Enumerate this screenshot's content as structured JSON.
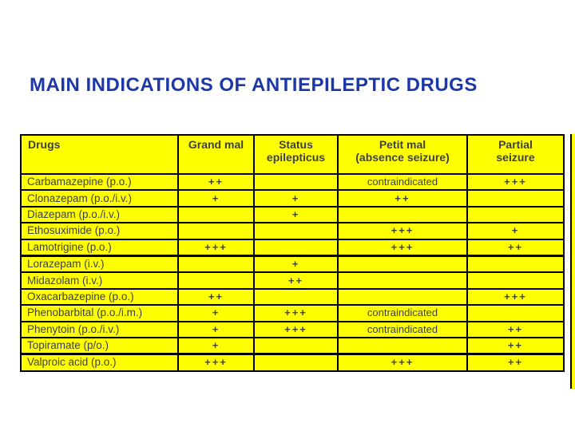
{
  "title": "MAIN INDICATIONS OF ANTIEPILEPTIC DRUGS",
  "colors": {
    "title_text": "#1c38a8",
    "table_background": "#ffff00",
    "table_text": "#3c3f48",
    "table_border": "#000000",
    "page_background": "#ffffff"
  },
  "table": {
    "columns": [
      "Drugs",
      "Grand mal",
      "Status\nepilepticus",
      "Petit mal\n(absence seizure)",
      "Partial\nseizure"
    ],
    "group_end_rows": [
      4,
      10
    ],
    "rows": [
      {
        "drug": "Carbamazepine (p.o.)",
        "grand_mal": "++",
        "status_epilepticus": "",
        "petit_mal": "contraindicated",
        "partial_seizure": "+++"
      },
      {
        "drug": "Clonazepam (p.o./i.v.)",
        "grand_mal": "+",
        "status_epilepticus": "+",
        "petit_mal": "++",
        "partial_seizure": ""
      },
      {
        "drug": "Diazepam (p.o./i.v.)",
        "grand_mal": "",
        "status_epilepticus": "+",
        "petit_mal": "",
        "partial_seizure": ""
      },
      {
        "drug": "Ethosuximide (p.o.)",
        "grand_mal": "",
        "status_epilepticus": "",
        "petit_mal": "+++",
        "partial_seizure": "+"
      },
      {
        "drug": "Lamotrigine (p.o.)",
        "grand_mal": "+++",
        "status_epilepticus": "",
        "petit_mal": "+++",
        "partial_seizure": "++"
      },
      {
        "drug": "Lorazepam (i.v.)",
        "grand_mal": "",
        "status_epilepticus": "+",
        "petit_mal": "",
        "partial_seizure": ""
      },
      {
        "drug": "Midazolam (i.v.)",
        "grand_mal": "",
        "status_epilepticus": "++",
        "petit_mal": "",
        "partial_seizure": ""
      },
      {
        "drug": "Oxacarbazepine (p.o.)",
        "grand_mal": "++",
        "status_epilepticus": "",
        "petit_mal": "",
        "partial_seizure": "+++"
      },
      {
        "drug": "Phenobarbital (p.o./i.m.)",
        "grand_mal": "+",
        "status_epilepticus": "+++",
        "petit_mal": "contraindicated",
        "partial_seizure": ""
      },
      {
        "drug": "Phenytoin (p.o./i.v.)",
        "grand_mal": "+",
        "status_epilepticus": "+++",
        "petit_mal": "contraindicated",
        "partial_seizure": "++"
      },
      {
        "drug": "Topiramate (p/o.)",
        "grand_mal": "+",
        "status_epilepticus": "",
        "petit_mal": "",
        "partial_seizure": "++"
      },
      {
        "drug": "Valproic acid (p.o.)",
        "grand_mal": "+++",
        "status_epilepticus": "",
        "petit_mal": "+++",
        "partial_seizure": "++"
      }
    ]
  }
}
